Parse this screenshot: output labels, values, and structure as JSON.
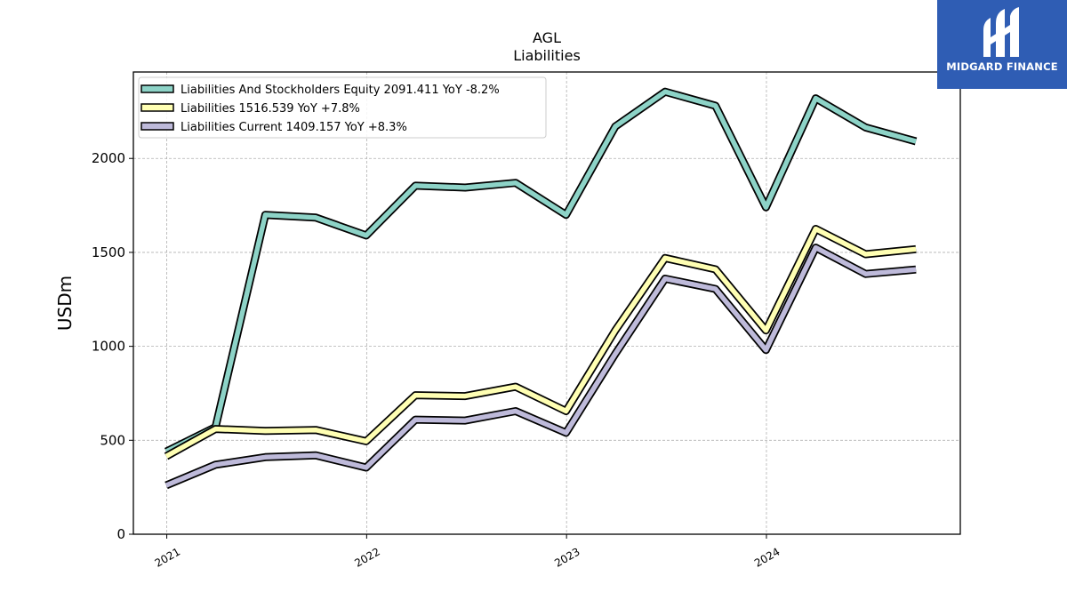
{
  "brand": {
    "name": "MIDGARD FINANCE",
    "bg_color": "#2f5db4"
  },
  "chart_data": {
    "type": "line",
    "title": "AGL",
    "subtitle": "Liabilities",
    "xlabel": "",
    "ylabel": "USDm",
    "ylim": [
      0,
      2460
    ],
    "yticks": [
      0,
      500,
      1000,
      1500,
      2000
    ],
    "x_tick_labels": [
      "2021",
      "2022",
      "2023",
      "2024"
    ],
    "x": [
      "2020-12-31",
      "2021-03-31",
      "2021-06-30",
      "2021-09-30",
      "2021-12-31",
      "2022-03-31",
      "2022-06-30",
      "2022-09-30",
      "2022-12-31",
      "2023-03-31",
      "2023-06-30",
      "2023-09-30",
      "2023-12-31",
      "2024-03-31",
      "2024-06-30",
      "2024-09-30"
    ],
    "grid": true,
    "legend_position": "top-left",
    "series": [
      {
        "name": "Liabilities And Stockholders Equity",
        "legend_label": "Liabilities And Stockholders Equity  2091.411 YoY -8.2%",
        "color": "#8dd3c7",
        "values": [
          440,
          570,
          1700,
          1685,
          1590,
          1855,
          1845,
          1870,
          1700,
          2170,
          2355,
          2280,
          1740,
          2320,
          2165,
          2091
        ]
      },
      {
        "name": "Liabilities",
        "legend_label": "Liabilities  1516.539 YoY +7.8%",
        "color": "#ffffb3",
        "values": [
          415,
          560,
          550,
          555,
          495,
          740,
          735,
          785,
          655,
          1085,
          1470,
          1410,
          1085,
          1625,
          1490,
          1517
        ]
      },
      {
        "name": "Liabilities Current",
        "legend_label": "Liabilities Current  1409.157 YoY +8.3%",
        "color": "#bebada",
        "values": [
          260,
          370,
          410,
          420,
          355,
          610,
          605,
          655,
          540,
          960,
          1360,
          1305,
          980,
          1525,
          1385,
          1409
        ]
      }
    ]
  }
}
